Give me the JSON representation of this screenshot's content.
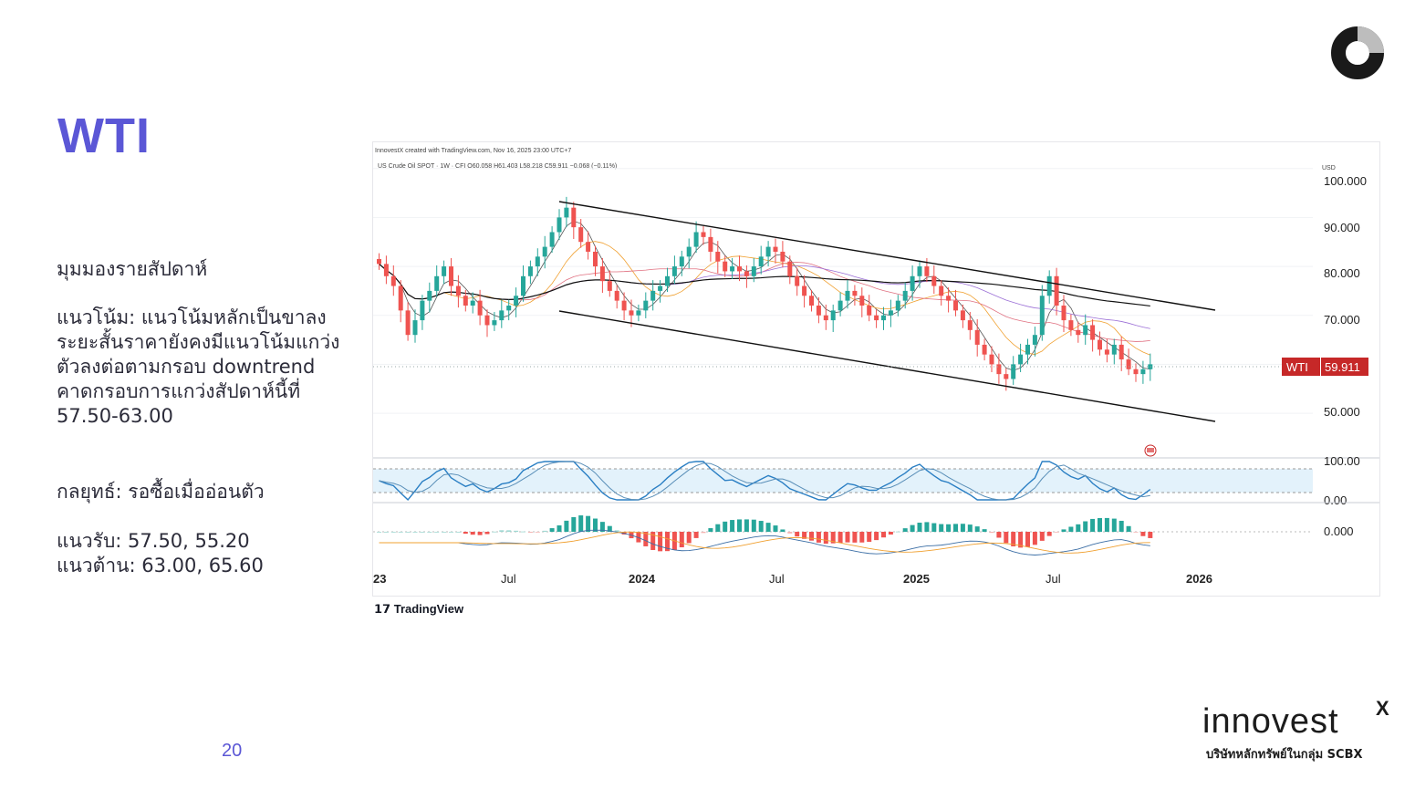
{
  "slide": {
    "title": "WTI",
    "page_number": "20",
    "heading": "มุมมองรายสัปดาห์",
    "trend_lines": [
      "แนวโน้ม: แนวโน้มหลักเป็นขาลง",
      "ระยะสั้นราคายังคงมีแนวโน้มแกว่ง",
      "ตัวลงต่อตามกรอบ downtrend",
      "คาดกรอบการแกว่งสัปดาห์นี้ที่",
      "57.50-63.00"
    ],
    "strategy": "กลยุทธ์: รอซื้อเมื่ออ่อนตัว",
    "support": "แนวรับ: 57.50, 55.20",
    "resistance": "แนวต้าน: 63.00, 65.60"
  },
  "brand": {
    "name": "innovest",
    "superscript": "X",
    "subtitle": "บริษัทหลักทรัพย์ในกลุ่ม SCBX",
    "chart_credit": "TradingView"
  },
  "colors": {
    "title": "#5b57d6",
    "up_candle": "#26a69a",
    "down_candle": "#ef5350",
    "price_label": "#c62828",
    "rsi_line": "#2a7fc4"
  },
  "chart_data": {
    "type": "candlestick",
    "header_line1": "InnovestX created with TradingView.com, Nov 16, 2025 23:00 UTC+7",
    "header_line2": "US Crude Oil SPOT · 1W · CFI  O60.058  H61.403  L58.218  C59.911  −0.068 (−0.11%)",
    "currency": "USD",
    "y_ticks": [
      "100.000",
      "90.000",
      "80.000",
      "70.000",
      "50.000"
    ],
    "ylim": [
      42,
      102
    ],
    "x_labels": [
      "23",
      "Jul",
      "2024",
      "Jul",
      "2025",
      "Jul",
      "2026"
    ],
    "last_price_label": "WTI",
    "last_price": "59.911",
    "rsi_ticks": [
      "100.00",
      "0.00"
    ],
    "macd_tick": "0.000",
    "weekly_close_estimates": [
      80.5,
      78,
      76,
      71,
      66,
      69,
      73,
      75,
      78,
      80,
      76,
      74,
      72,
      73,
      70,
      68,
      69,
      71,
      72,
      74,
      78,
      80,
      82,
      84,
      87,
      90,
      92,
      88,
      85,
      83,
      80,
      77,
      75,
      73,
      71,
      70,
      71,
      73,
      75,
      76,
      78,
      80,
      82,
      84,
      87,
      86,
      83,
      81,
      79,
      80,
      79,
      78,
      80,
      82,
      84,
      83,
      81,
      78,
      76,
      74,
      72,
      70,
      69,
      71,
      73,
      75,
      74,
      72,
      70,
      69,
      70,
      71,
      73,
      75,
      78,
      80,
      78,
      76,
      74,
      73,
      71,
      69,
      67,
      64,
      62,
      60,
      58,
      57,
      60,
      62,
      64,
      66,
      74,
      78,
      72,
      69,
      67,
      66,
      68,
      65,
      63,
      62,
      64,
      61,
      59,
      58,
      59,
      60
    ]
  }
}
